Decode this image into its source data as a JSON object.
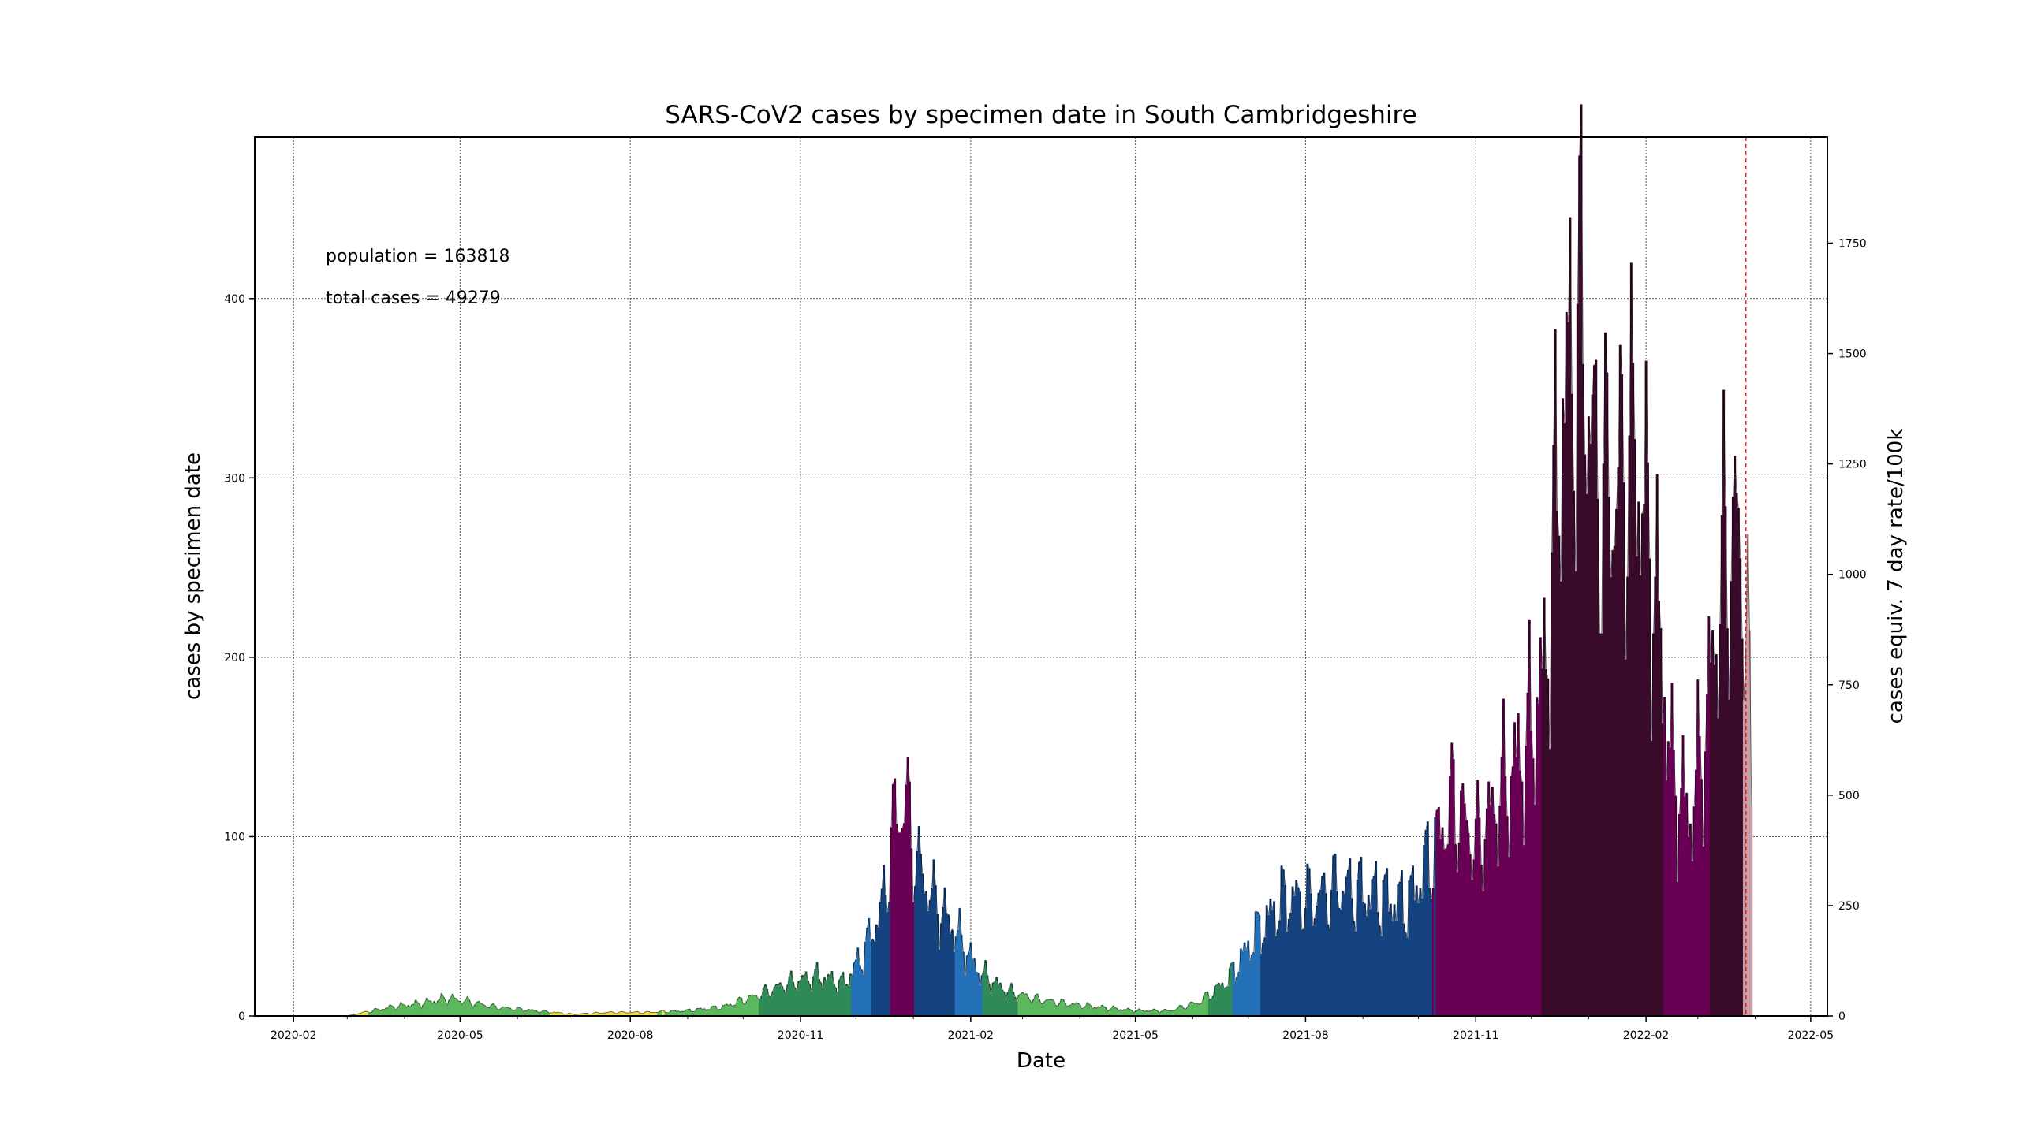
{
  "chart_data": {
    "type": "area",
    "title": "SARS-CoV2 cases by specimen date in South Cambridgeshire",
    "xlabel": "Date",
    "ylabel": "cases by specimen date",
    "y2label": "cases equiv. 7 day rate/100k",
    "x_range": [
      "2020-01-11",
      "2022-05-10"
    ],
    "ylim": [
      0,
      490
    ],
    "y2lim": [
      0,
      1990
    ],
    "x_ticks": [
      "2020-02",
      "2020-05",
      "2020-08",
      "2020-11",
      "2021-02",
      "2021-05",
      "2021-08",
      "2021-11",
      "2022-02",
      "2022-05"
    ],
    "y_ticks": [
      0,
      100,
      200,
      300,
      400
    ],
    "y2_ticks": [
      0,
      250,
      500,
      750,
      1000,
      1250,
      1500,
      1750
    ],
    "grid": true,
    "annotations": [
      "population = 163818",
      "total cases = 49279"
    ],
    "marker_date": "2022-03-27",
    "marker_color": "#ff0000",
    "fill_colors_by_rate": [
      {
        "max_rate": 10,
        "color": "#f0e442"
      },
      {
        "max_rate": 50,
        "color": "#5cb85c"
      },
      {
        "max_rate": 100,
        "color": "#2e8b57"
      },
      {
        "max_rate": 200,
        "color": "#2471b8"
      },
      {
        "max_rate": 400,
        "color": "#154380"
      },
      {
        "max_rate": 800,
        "color": "#6a0055"
      },
      {
        "max_rate": 100000,
        "color": "#3a0a2a"
      }
    ],
    "last_days_color": "#c79fa8",
    "series_keypoints": [
      [
        "2020-03-01",
        0
      ],
      [
        "2020-03-10",
        2
      ],
      [
        "2020-03-25",
        5
      ],
      [
        "2020-04-10",
        7
      ],
      [
        "2020-04-25",
        10
      ],
      [
        "2020-05-05",
        8
      ],
      [
        "2020-05-20",
        5
      ],
      [
        "2020-06-10",
        3
      ],
      [
        "2020-07-01",
        1
      ],
      [
        "2020-07-20",
        2
      ],
      [
        "2020-08-10",
        2
      ],
      [
        "2020-09-01",
        3
      ],
      [
        "2020-09-20",
        5
      ],
      [
        "2020-10-10",
        12
      ],
      [
        "2020-10-25",
        18
      ],
      [
        "2020-11-10",
        22
      ],
      [
        "2020-11-25",
        18
      ],
      [
        "2020-12-05",
        35
      ],
      [
        "2020-12-15",
        60
      ],
      [
        "2020-12-22",
        110
      ],
      [
        "2020-12-28",
        120
      ],
      [
        "2021-01-03",
        85
      ],
      [
        "2021-01-12",
        65
      ],
      [
        "2021-01-25",
        45
      ],
      [
        "2021-02-05",
        25
      ],
      [
        "2021-02-20",
        14
      ],
      [
        "2021-03-10",
        9
      ],
      [
        "2021-04-01",
        6
      ],
      [
        "2021-05-01",
        3
      ],
      [
        "2021-05-20",
        3
      ],
      [
        "2021-06-05",
        8
      ],
      [
        "2021-06-20",
        20
      ],
      [
        "2021-07-05",
        45
      ],
      [
        "2021-07-20",
        65
      ],
      [
        "2021-08-05",
        65
      ],
      [
        "2021-08-20",
        72
      ],
      [
        "2021-09-05",
        68
      ],
      [
        "2021-09-25",
        62
      ],
      [
        "2021-10-10",
        95
      ],
      [
        "2021-10-20",
        120
      ],
      [
        "2021-11-01",
        95
      ],
      [
        "2021-11-15",
        125
      ],
      [
        "2021-11-28",
        150
      ],
      [
        "2021-12-08",
        190
      ],
      [
        "2021-12-18",
        340
      ],
      [
        "2021-12-28",
        390
      ],
      [
        "2022-01-05",
        300
      ],
      [
        "2022-01-15",
        290
      ],
      [
        "2022-01-25",
        320
      ],
      [
        "2022-02-05",
        250
      ],
      [
        "2022-02-15",
        135
      ],
      [
        "2022-02-25",
        110
      ],
      [
        "2022-03-05",
        160
      ],
      [
        "2022-03-15",
        255
      ],
      [
        "2022-03-22",
        270
      ],
      [
        "2022-03-28",
        220
      ],
      [
        "2022-03-30",
        105
      ]
    ]
  }
}
